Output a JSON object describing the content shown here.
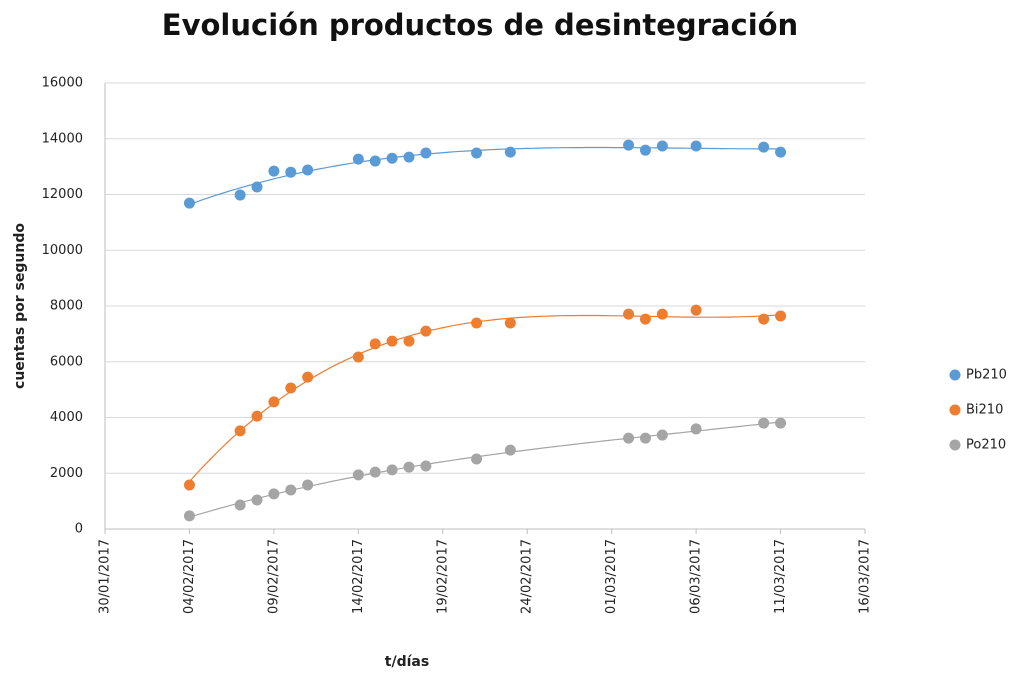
{
  "chart_data": {
    "type": "scatter",
    "title": "Evolución productos de desintegración",
    "x_label": "t/días",
    "y_label": "cuentas por segundo",
    "xlim": [
      "2017-01-30",
      "2017-03-16"
    ],
    "xticks": [
      {
        "value": "2017-01-30",
        "label": "30/01/2017"
      },
      {
        "value": "2017-02-04",
        "label": "04/02/2017"
      },
      {
        "value": "2017-02-09",
        "label": "09/02/2017"
      },
      {
        "value": "2017-02-14",
        "label": "14/02/2017"
      },
      {
        "value": "2017-02-19",
        "label": "19/02/2017"
      },
      {
        "value": "2017-02-24",
        "label": "24/02/2017"
      },
      {
        "value": "2017-03-01",
        "label": "01/03/2017"
      },
      {
        "value": "2017-03-06",
        "label": "06/03/2017"
      },
      {
        "value": "2017-03-11",
        "label": "11/03/2017"
      },
      {
        "value": "2017-03-16",
        "label": "16/03/2017"
      }
    ],
    "ylim": [
      0,
      16000
    ],
    "yticks": [
      0,
      2000,
      4000,
      6000,
      8000,
      10000,
      12000,
      14000,
      16000
    ],
    "grid": true,
    "legend": "right",
    "trendline": true,
    "x": [
      "2017-02-04",
      "2017-02-07",
      "2017-02-08",
      "2017-02-09",
      "2017-02-10",
      "2017-02-11",
      "2017-02-14",
      "2017-02-15",
      "2017-02-16",
      "2017-02-17",
      "2017-02-18",
      "2017-02-21",
      "2017-02-23",
      "2017-03-02",
      "2017-03-03",
      "2017-03-04",
      "2017-03-06",
      "2017-03-10",
      "2017-03-11"
    ],
    "series": [
      {
        "name": "Pb210",
        "color": "#5b9bd5",
        "values": [
          11690,
          11980,
          12270,
          12840,
          12800,
          12880,
          13270,
          13200,
          13300,
          13340,
          13490,
          13490,
          13520,
          13770,
          13590,
          13740,
          13740,
          13700,
          13520
        ]
      },
      {
        "name": "Bi210",
        "color": "#ed7d31",
        "values": [
          1580,
          3520,
          4050,
          4560,
          5060,
          5450,
          6170,
          6640,
          6740,
          6740,
          7100,
          7390,
          7390,
          7710,
          7530,
          7710,
          7850,
          7530,
          7640
        ]
      },
      {
        "name": "Po210",
        "color": "#a5a5a5",
        "values": [
          470,
          860,
          1040,
          1260,
          1400,
          1580,
          1940,
          2040,
          2120,
          2220,
          2260,
          2510,
          2830,
          3260,
          3260,
          3370,
          3590,
          3800,
          3800
        ]
      }
    ]
  }
}
